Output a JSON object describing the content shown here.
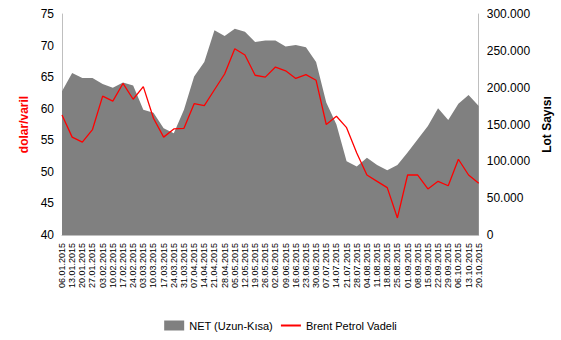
{
  "chart_data": {
    "type": "line",
    "categories": [
      "06.01.2015",
      "13.01.2015",
      "20.01.2015",
      "27.01.2015",
      "03.02.2015",
      "10.02.2015",
      "17.02.2015",
      "24.02.2015",
      "03.03.2015",
      "10.03.2015",
      "17.03.2015",
      "24.03.2015",
      "31.03.2015",
      "07.04.2015",
      "14.04.2015",
      "21.04.2015",
      "28.04.2015",
      "05.05.2015",
      "12.05.2015",
      "19.05.2015",
      "26.05.2015",
      "02.06.2015",
      "09.06.2015",
      "16.06.2015",
      "23.06.2015",
      "30.06.2015",
      "07.07.2015",
      "14.07.2015",
      "21.07.2015",
      "28.07.2015",
      "04.08.2015",
      "11.08.2015",
      "18.08.2015",
      "25.08.2015",
      "01.09.2015",
      "08.09.2015",
      "15.09.2015",
      "22.09.2015",
      "29.09.2015",
      "06.10.2015",
      "13.10.2015",
      "20.10.2015"
    ],
    "series": [
      {
        "name": "NET (Uzun-Kısa)",
        "type": "area",
        "axis": "y2",
        "color": "#808080",
        "values": [
          195000,
          220000,
          213000,
          213000,
          205000,
          200000,
          207000,
          203000,
          170000,
          166000,
          145000,
          138000,
          170000,
          215000,
          235000,
          278000,
          270000,
          280000,
          276000,
          262000,
          264000,
          264000,
          256000,
          258000,
          255000,
          235000,
          180000,
          150000,
          100000,
          93000,
          105000,
          95000,
          88000,
          95000,
          112000,
          130000,
          148000,
          172000,
          156000,
          178000,
          190000,
          175000
        ]
      },
      {
        "name": "Brent Petrol Vadeli",
        "type": "line",
        "color": "#ff0000",
        "values": [
          59.0,
          55.5,
          54.7,
          56.7,
          62.0,
          61.2,
          64.0,
          61.5,
          63.5,
          58.5,
          55.5,
          56.8,
          56.9,
          60.8,
          60.5,
          63.0,
          65.5,
          69.5,
          68.5,
          65.3,
          65.0,
          66.6,
          66.0,
          64.8,
          65.4,
          64.5,
          57.5,
          58.8,
          57.0,
          53.0,
          49.5,
          48.5,
          47.5,
          42.7,
          49.5,
          49.5,
          47.3,
          48.5,
          47.8,
          52.0,
          49.5,
          48.2
        ]
      }
    ],
    "y_label": "dolar/varil",
    "y2_label": "Lot Sayısı",
    "ylim": [
      40,
      75
    ],
    "yticks": [
      40,
      45,
      50,
      55,
      60,
      65,
      70,
      75
    ],
    "y2lim": [
      0,
      300000
    ],
    "y2ticks": [
      0,
      {
        "value": 50000,
        "label": "50.000"
      },
      {
        "value": 100000,
        "label": "100.000"
      },
      {
        "value": 150000,
        "label": "150.000"
      },
      {
        "value": 200000,
        "label": "200.000"
      },
      {
        "value": 250000,
        "label": "250.000"
      },
      {
        "value": 300000,
        "label": "300.000"
      }
    ],
    "grid": false,
    "legend": "bottom"
  }
}
